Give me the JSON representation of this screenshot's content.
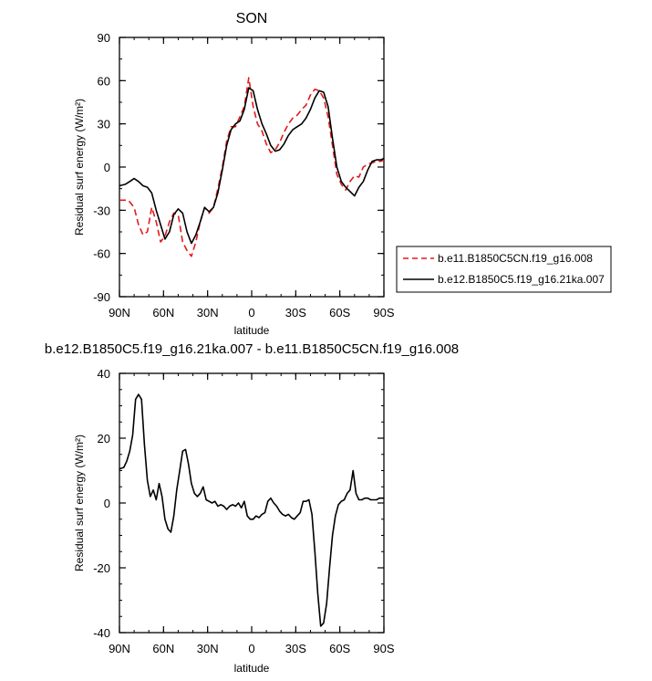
{
  "chart_data": [
    {
      "type": "line",
      "title": "SON",
      "xlabel": "latitude",
      "ylabel": "Residual surf energy (W/m²)",
      "xlim": [
        90,
        -90
      ],
      "ylim": [
        -90,
        90
      ],
      "xticks": [
        90,
        60,
        30,
        0,
        -30,
        -60,
        -90
      ],
      "xtick_labels": [
        "90N",
        "60N",
        "30N",
        "0",
        "30S",
        "60S",
        "90S"
      ],
      "yticks": [
        90,
        60,
        30,
        0,
        -30,
        -60,
        -90
      ],
      "ytick_labels": [
        "90",
        "60",
        "30",
        "0",
        "-30",
        "-60",
        "-90"
      ],
      "legend_position": "right",
      "series": [
        {
          "name": "b.e11.B1850C5CN.f19_g16.008",
          "color": "#e41a1c",
          "dash": "dashed",
          "x": [
            90,
            84,
            80,
            77,
            74,
            71,
            68,
            65,
            62,
            59,
            56,
            53,
            50,
            47,
            44,
            41,
            38,
            35,
            32,
            29,
            26,
            23,
            20,
            17,
            14,
            11,
            8,
            5,
            2,
            -1,
            -4,
            -7,
            -10,
            -13,
            -16,
            -19,
            -22,
            -25,
            -28,
            -31,
            -34,
            -37,
            -40,
            -43,
            -46,
            -49,
            -52,
            -55,
            -58,
            -61,
            -64,
            -67,
            -70,
            -73,
            -76,
            -79,
            -82,
            -85,
            -88,
            -90
          ],
          "y": [
            -23,
            -23,
            -28,
            -40,
            -47,
            -45,
            -28,
            -38,
            -52,
            -48,
            -38,
            -32,
            -33,
            -52,
            -58,
            -62,
            -52,
            -38,
            -28,
            -32,
            -28,
            -15,
            0,
            18,
            28,
            28,
            35,
            42,
            62,
            42,
            30,
            25,
            16,
            10,
            12,
            17,
            24,
            30,
            34,
            36,
            40,
            43,
            50,
            54,
            53,
            48,
            35,
            15,
            -5,
            -12,
            -16,
            -10,
            -6,
            -7,
            0,
            2,
            3,
            4,
            4,
            5
          ]
        },
        {
          "name": "b.e12.B1850C5.f19_g16.21ka.007",
          "color": "#000000",
          "dash": "solid",
          "x": [
            90,
            86,
            83,
            80,
            77,
            74,
            71,
            68,
            65,
            62,
            59,
            56,
            53,
            50,
            47,
            44,
            41,
            38,
            35,
            32,
            29,
            26,
            23,
            20,
            17,
            14,
            11,
            8,
            5,
            2,
            -1,
            -4,
            -7,
            -10,
            -13,
            -16,
            -19,
            -22,
            -25,
            -28,
            -31,
            -34,
            -37,
            -40,
            -43,
            -46,
            -49,
            -52,
            -55,
            -58,
            -61,
            -64,
            -67,
            -70,
            -73,
            -76,
            -79,
            -82,
            -85,
            -88,
            -90
          ],
          "y": [
            -13,
            -12,
            -10,
            -8,
            -10,
            -13,
            -14,
            -18,
            -30,
            -40,
            -50,
            -45,
            -33,
            -29,
            -32,
            -45,
            -53,
            -47,
            -38,
            -28,
            -31,
            -28,
            -18,
            -2,
            15,
            26,
            30,
            32,
            40,
            55,
            53,
            40,
            30,
            23,
            15,
            11,
            12,
            16,
            22,
            26,
            28,
            30,
            34,
            40,
            48,
            53,
            52,
            42,
            20,
            0,
            -10,
            -14,
            -17,
            -20,
            -14,
            -10,
            -2,
            4,
            5,
            5,
            6
          ]
        }
      ]
    },
    {
      "type": "line",
      "title": "b.e12.B1850C5.f19_g16.21ka.007 - b.e11.B1850C5CN.f19_g16.008",
      "xlabel": "latitude",
      "ylabel": "Residual surf energy (W/m²)",
      "xlim": [
        90,
        -90
      ],
      "ylim": [
        -40,
        40
      ],
      "xticks": [
        90,
        60,
        30,
        0,
        -30,
        -60,
        -90
      ],
      "xtick_labels": [
        "90N",
        "60N",
        "30N",
        "0",
        "30S",
        "60S",
        "90S"
      ],
      "yticks": [
        40,
        20,
        0,
        -20,
        -40
      ],
      "ytick_labels": [
        "40",
        "20",
        "0",
        "-20",
        "-40"
      ],
      "series": [
        {
          "name": "",
          "color": "#000000",
          "dash": "solid",
          "x": [
            90,
            87,
            85,
            83,
            81,
            79,
            77,
            75,
            73,
            71,
            69,
            67,
            65,
            63,
            61,
            59,
            57,
            55,
            53,
            51,
            49,
            47,
            45,
            43,
            41,
            39,
            37,
            35,
            33,
            31,
            29,
            27,
            25,
            23,
            21,
            19,
            17,
            15,
            13,
            11,
            9,
            7,
            5,
            3,
            1,
            -1,
            -3,
            -5,
            -7,
            -9,
            -11,
            -13,
            -15,
            -17,
            -19,
            -21,
            -23,
            -25,
            -27,
            -29,
            -31,
            -33,
            -35,
            -37,
            -39,
            -41,
            -43,
            -45,
            -47,
            -49,
            -51,
            -53,
            -55,
            -57,
            -59,
            -61,
            -63,
            -65,
            -67,
            -69,
            -71,
            -73,
            -75,
            -77,
            -79,
            -81,
            -83,
            -85,
            -87,
            -90
          ],
          "y": [
            10.5,
            11,
            13,
            16,
            21,
            32,
            33.5,
            32,
            18,
            7,
            2,
            4,
            1,
            6,
            2,
            -5,
            -8,
            -9,
            -4,
            4,
            10,
            16,
            16.5,
            12,
            6,
            3,
            2,
            3,
            5,
            1,
            0.5,
            0,
            0.5,
            -1,
            -0.5,
            -1,
            -2,
            -1,
            -0.5,
            -1,
            0,
            -1.5,
            0.5,
            -4,
            -5,
            -5,
            -4,
            -4.5,
            -3.5,
            -3,
            0.5,
            1.5,
            0,
            -1,
            -2.5,
            -3.5,
            -4,
            -3.5,
            -4.5,
            -5,
            -4,
            -3,
            0.5,
            0.5,
            1,
            -3.5,
            -15,
            -28,
            -38,
            -37,
            -31,
            -20,
            -10,
            -4,
            -0.5,
            0.5,
            1,
            3,
            4,
            10,
            3,
            1,
            1,
            1.5,
            1.5,
            1,
            1,
            1,
            1.5,
            1.5
          ]
        }
      ]
    }
  ]
}
